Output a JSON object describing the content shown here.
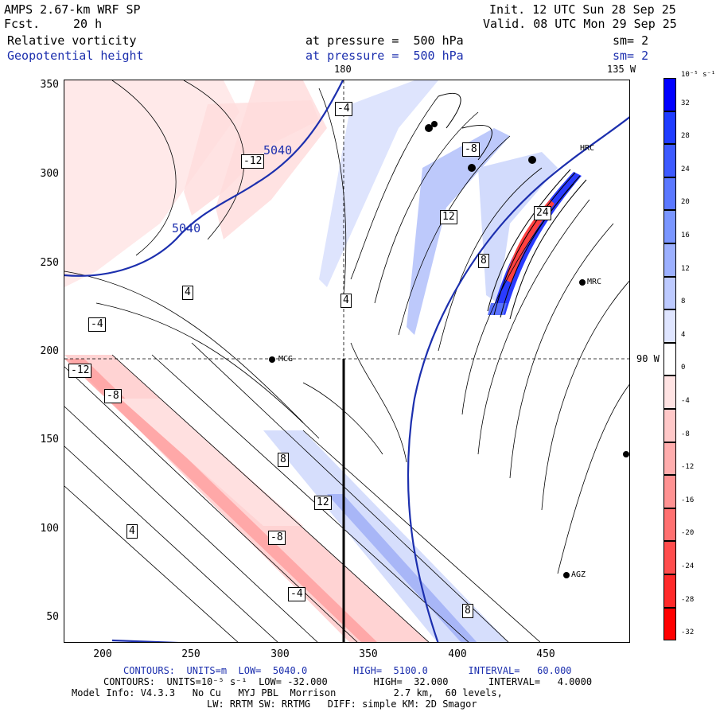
{
  "header": {
    "model": "AMPS 2.67-km WRF SP",
    "fcst_label": "Fcst.",
    "fcst_value": "20 h",
    "init": "Init. 12 UTC Sun 28 Sep 25",
    "valid": "Valid. 08 UTC Mon 29 Sep 25",
    "field1_name": "Relative vorticity",
    "field1_level": "at pressure =  500 hPa",
    "field1_smooth": "sm= 2",
    "field2_name": "Geopotential height",
    "field2_level": "at pressure =  500 hPa",
    "field2_smooth": "sm= 2"
  },
  "map": {
    "top_lon_labels": [
      "180",
      "135 W"
    ],
    "right_lat_label": "90 W",
    "stations": [
      "MCG",
      "HRC",
      "MRC",
      "AGZ"
    ],
    "height_contour_labels": [
      "5040",
      "5040"
    ],
    "vort_labels": [
      "-12",
      "-8",
      "-4",
      "4",
      "8",
      "12",
      "-8",
      "-4",
      "4",
      "8",
      "24",
      "-12",
      "-8",
      "-4",
      "4",
      "8",
      "12"
    ],
    "x_ticks": [
      "200",
      "250",
      "300",
      "350",
      "400",
      "450"
    ],
    "y_ticks": [
      "350",
      "300",
      "250",
      "200",
      "150",
      "100",
      "50"
    ]
  },
  "colorbar": {
    "unit_label": "10⁻⁵ s⁻¹",
    "labels": [
      "32",
      "28",
      "24",
      "20",
      "16",
      "12",
      "8",
      "4",
      "0",
      "-4",
      "-8",
      "-12",
      "-16",
      "-20",
      "-24",
      "-28",
      "-32"
    ],
    "colors": [
      "#0000ff",
      "#1f3cff",
      "#3d5aff",
      "#5b78ff",
      "#7a96ff",
      "#9cb0ff",
      "#bdcaff",
      "#dfe5ff",
      "#ffffff",
      "#ffe3e3",
      "#ffc8c8",
      "#ffadad",
      "#ff9292",
      "#ff7070",
      "#ff4d4d",
      "#ff2a2a",
      "#ff0000"
    ]
  },
  "footer": {
    "contours1": "CONTOURS:  UNITS=m  LOW=  5040.0        HIGH=  5100.0       INTERVAL=   60.000",
    "contours2": "CONTOURS:  UNITS=10⁻⁵ s⁻¹  LOW= -32.000        HIGH=  32.000       INTERVAL=   4.0000",
    "model_info": "Model Info: V4.3.3   No Cu   MYJ PBL  Morrison          2.7 km,  60 levels,",
    "physics": "LW: RRTM SW: RRTMG   DIFF: simple KM: 2D Smagor"
  }
}
